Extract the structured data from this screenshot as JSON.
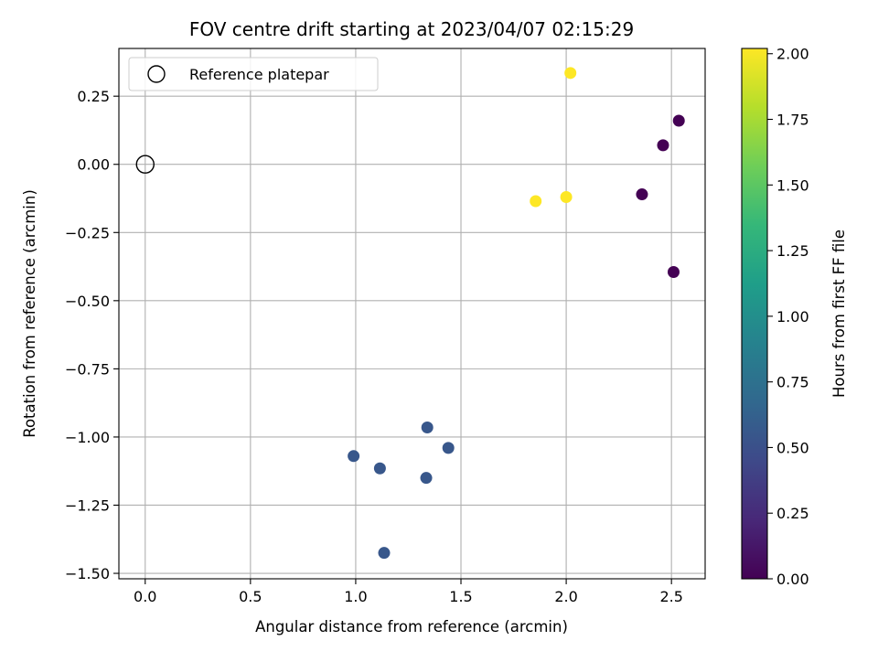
{
  "chart_data": {
    "type": "scatter",
    "title": "FOV centre drift starting at 2023/04/07 02:15:29",
    "xlabel": "Angular distance from reference (arcmin)",
    "ylabel": "Rotation from reference (arcmin)",
    "xlim": [
      -0.125,
      2.66
    ],
    "ylim": [
      -1.52,
      0.425
    ],
    "xticks": [
      0.0,
      0.5,
      1.0,
      1.5,
      2.0,
      2.5
    ],
    "xtick_labels": [
      "0.0",
      "0.5",
      "1.0",
      "1.5",
      "2.0",
      "2.5"
    ],
    "yticks": [
      0.25,
      0.0,
      -0.25,
      -0.5,
      -0.75,
      -1.0,
      -1.25,
      -1.5
    ],
    "ytick_labels": [
      "0.25",
      "0.00",
      "−0.25",
      "−0.50",
      "−0.75",
      "−1.00",
      "−1.25",
      "−1.50"
    ],
    "grid": true,
    "legend": {
      "position": "top-left",
      "entries": [
        {
          "label": "Reference platepar",
          "marker": "hollow-circle",
          "color": "#000000"
        }
      ]
    },
    "reference_point": {
      "x": 0.0,
      "y": 0.0
    },
    "points": [
      {
        "x": 2.36,
        "y": -0.11,
        "hours": 0.0
      },
      {
        "x": 2.46,
        "y": 0.07,
        "hours": 0.0
      },
      {
        "x": 2.535,
        "y": 0.16,
        "hours": 0.0
      },
      {
        "x": 2.51,
        "y": -0.395,
        "hours": 0.0
      },
      {
        "x": 0.99,
        "y": -1.07,
        "hours": 0.55
      },
      {
        "x": 1.115,
        "y": -1.115,
        "hours": 0.55
      },
      {
        "x": 1.34,
        "y": -0.965,
        "hours": 0.55
      },
      {
        "x": 1.44,
        "y": -1.04,
        "hours": 0.55
      },
      {
        "x": 1.335,
        "y": -1.15,
        "hours": 0.55
      },
      {
        "x": 1.135,
        "y": -1.425,
        "hours": 0.55
      },
      {
        "x": 1.855,
        "y": -0.135,
        "hours": 2.02
      },
      {
        "x": 2.0,
        "y": -0.12,
        "hours": 2.02
      },
      {
        "x": 2.02,
        "y": 0.335,
        "hours": 2.02
      }
    ],
    "colorbar": {
      "label": "Hours from first FF file",
      "colormap": "viridis",
      "range": [
        0.0,
        2.02
      ],
      "ticks": [
        0.0,
        0.25,
        0.5,
        0.75,
        1.0,
        1.25,
        1.5,
        1.75,
        2.0
      ],
      "tick_labels": [
        "0.00",
        "0.25",
        "0.50",
        "0.75",
        "1.00",
        "1.25",
        "1.50",
        "1.75",
        "2.00"
      ],
      "stops": [
        "#440154",
        "#482878",
        "#3e4989",
        "#31688e",
        "#26828e",
        "#1f9e89",
        "#35b779",
        "#6ece58",
        "#b5de2b",
        "#fde725"
      ]
    }
  }
}
